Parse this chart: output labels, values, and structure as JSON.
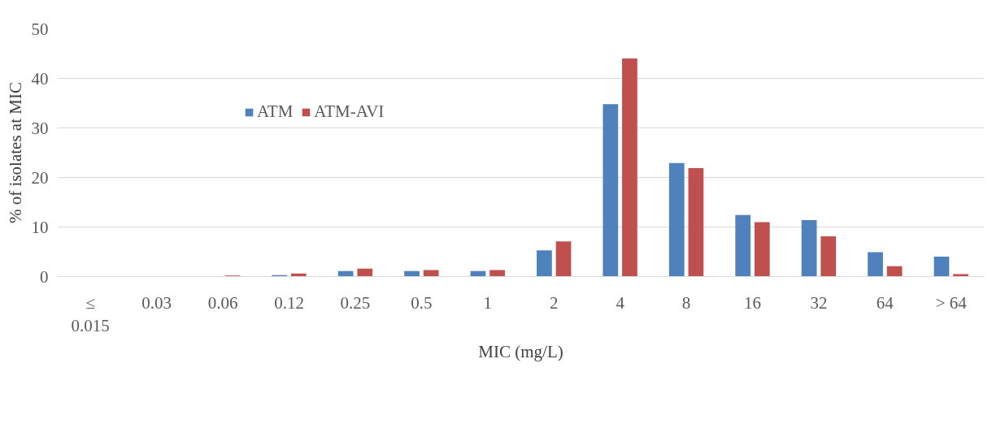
{
  "chart_data": {
    "type": "bar",
    "xlabel": "MIC (mg/L)",
    "ylabel": "% of isolates at MIC",
    "categories": [
      "≤ 0.015",
      "0.03",
      "0.06",
      "0.12",
      "0.25",
      "0.5",
      "1",
      "2",
      "4",
      "8",
      "16",
      "32",
      "64",
      "> 64"
    ],
    "series": [
      {
        "name": "ATM",
        "color": "#4f81bd",
        "values": [
          null,
          null,
          null,
          0.3,
          1.1,
          1.1,
          1.1,
          5.3,
          34.8,
          22.9,
          12.4,
          11.4,
          4.9,
          4.0
        ]
      },
      {
        "name": "ATM-AVI",
        "color": "#c0504d",
        "values": [
          null,
          null,
          0.2,
          0.6,
          1.6,
          1.3,
          1.3,
          7.1,
          44,
          21.9,
          11.0,
          8.1,
          2.1,
          0.5
        ]
      }
    ],
    "ylim": [
      0,
      50
    ],
    "yticks": [
      0,
      10,
      20,
      30,
      40,
      50
    ],
    "grid": "y",
    "legend": "left"
  }
}
